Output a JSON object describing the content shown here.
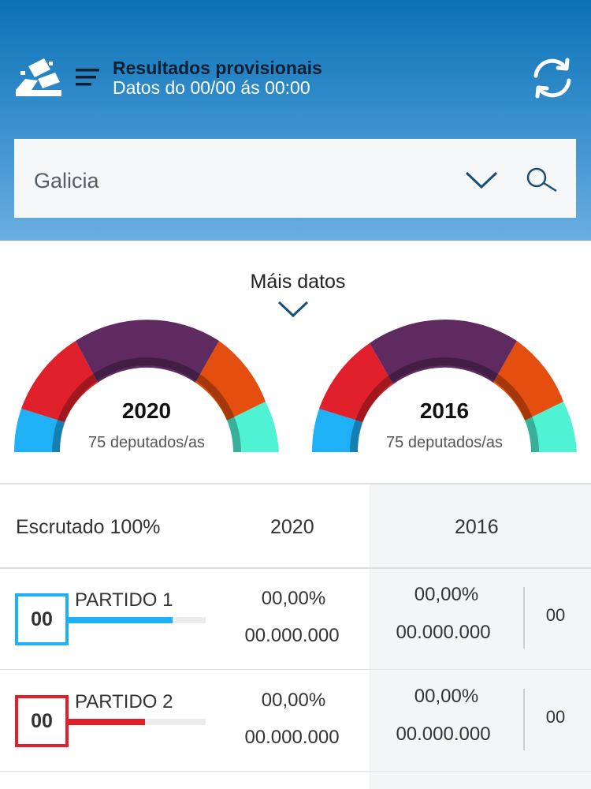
{
  "header": {
    "title": "Resultados provisionais",
    "subtitle": "Datos do 00/00 ás 00:00",
    "logo_icon": "ballot-box-icon",
    "menu_icon": "menu-icon",
    "refresh_icon": "refresh-icon"
  },
  "search": {
    "value": "Galicia",
    "dropdown_icon": "chevron-down-icon",
    "search_icon": "search-icon"
  },
  "more_data": {
    "label": "Máis datos"
  },
  "gauges": [
    {
      "year": "2020",
      "subtitle": "75 deputados/as"
    },
    {
      "year": "2016",
      "subtitle": "75 deputados/as"
    }
  ],
  "colors": {
    "blue": "#1fb1f5",
    "red": "#e0202a",
    "purple": "#5e2a5f",
    "orange": "#e44e0e",
    "teal": "#4ff2d3",
    "header_top": "#0b72b5"
  },
  "table": {
    "header": {
      "label": "Escrutado 100%",
      "col_2020": "2020",
      "col_2016": "2016"
    },
    "rows": [
      {
        "seats": "00",
        "name": "PARTIDO 1",
        "color": "#1fb1f5",
        "bar_fraction": 0.76,
        "pct_2020": "00,00%",
        "votes_2020": "00.000.000",
        "pct_2016": "00,00%",
        "votes_2016": "00.000.000",
        "seats_2016": "00"
      },
      {
        "seats": "00",
        "name": "PARTIDO 2",
        "color": "#e0202a",
        "bar_fraction": 0.56,
        "pct_2020": "00,00%",
        "votes_2020": "00.000.000",
        "pct_2016": "00,00%",
        "votes_2016": "00.000.000",
        "seats_2016": "00"
      }
    ]
  }
}
